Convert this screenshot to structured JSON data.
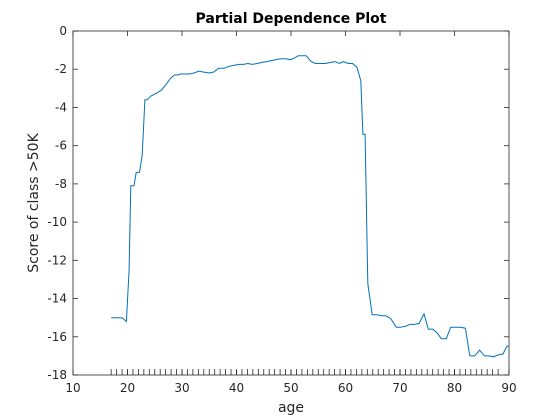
{
  "chart_data": {
    "type": "line",
    "title": "Partial Dependence Plot",
    "xlabel": "age",
    "ylabel": "Score of class >50K",
    "xlim": [
      10,
      90
    ],
    "ylim": [
      -18,
      0
    ],
    "xticks": [
      10,
      20,
      30,
      40,
      50,
      60,
      70,
      80,
      90
    ],
    "yticks": [
      0,
      -2,
      -4,
      -6,
      -8,
      -10,
      -12,
      -14,
      -16,
      -18
    ],
    "xtick_labels": [
      "10",
      "20",
      "30",
      "40",
      "50",
      "60",
      "70",
      "80",
      "90"
    ],
    "ytick_labels": [
      "0",
      "-2",
      "-4",
      "-6",
      "-8",
      "-10",
      "-12",
      "-14",
      "-16",
      "-18"
    ],
    "grid": false,
    "line_color": "#0072BD",
    "rug_x": [
      17,
      18,
      19,
      20,
      21,
      22,
      23,
      24,
      25,
      26,
      27,
      28,
      29,
      30,
      31,
      32,
      33,
      34,
      35,
      36,
      37,
      38,
      39,
      40,
      41,
      42,
      43,
      44,
      45,
      46,
      47,
      48,
      49,
      50,
      51,
      52,
      53,
      54,
      55,
      56,
      57,
      58,
      59,
      60,
      61,
      62,
      63,
      64,
      65,
      66,
      67,
      68,
      69,
      70,
      71,
      72,
      73,
      74,
      75,
      76,
      77,
      78,
      79,
      80,
      81,
      82,
      83,
      84,
      85,
      86,
      87,
      88,
      90
    ],
    "series": [
      {
        "x": [
          17,
          19,
          19.8,
          20.3,
          20.6,
          21.2,
          21.6,
          22.2,
          22.7,
          23.2,
          23.6,
          24.3,
          25,
          25.6,
          26.2,
          27.1,
          27.8,
          28.6,
          29.3,
          29.7,
          30.6,
          31.4,
          32.2,
          33.1,
          34,
          35,
          35.8,
          36.7,
          37.7,
          38.6,
          39.5,
          40.4,
          41.3,
          42.1,
          42.9,
          43.8,
          44.6,
          45.5,
          46.4,
          47.2,
          48.1,
          49,
          49.9,
          50.7,
          51.3,
          52,
          52.8,
          53.7,
          54.5,
          55.4,
          56.3,
          57.2,
          58.1,
          58.9,
          59.6,
          60.5,
          61.3,
          62.1,
          62.8,
          63.2,
          63.6,
          64.1,
          64.9,
          65.7,
          66.6,
          67.4,
          68.3,
          69.3,
          70.1,
          71,
          71.8,
          72.7,
          73.5,
          74.4,
          75.2,
          76,
          76.8,
          77.6,
          78.5,
          79.3,
          80.2,
          81.1,
          82,
          82.8,
          83.7,
          84.6,
          85.5,
          86.3,
          87.2,
          88,
          88.9,
          89.6,
          90
        ],
        "y": [
          -15,
          -15,
          -15.2,
          -12.5,
          -8.1,
          -8.1,
          -7.4,
          -7.4,
          -6.5,
          -3.6,
          -3.6,
          -3.4,
          -3.3,
          -3.2,
          -3.1,
          -2.8,
          -2.5,
          -2.3,
          -2.3,
          -2.25,
          -2.25,
          -2.25,
          -2.2,
          -2.1,
          -2.15,
          -2.2,
          -2.15,
          -1.95,
          -1.95,
          -1.85,
          -1.8,
          -1.75,
          -1.75,
          -1.7,
          -1.75,
          -1.7,
          -1.65,
          -1.6,
          -1.55,
          -1.5,
          -1.45,
          -1.45,
          -1.5,
          -1.4,
          -1.3,
          -1.3,
          -1.3,
          -1.6,
          -1.7,
          -1.7,
          -1.7,
          -1.65,
          -1.6,
          -1.7,
          -1.6,
          -1.7,
          -1.7,
          -1.9,
          -2.6,
          -5.4,
          -5.4,
          -13.2,
          -14.85,
          -14.85,
          -14.9,
          -14.9,
          -15.05,
          -15.5,
          -15.5,
          -15.45,
          -15.35,
          -15.35,
          -15.3,
          -14.8,
          -15.6,
          -15.6,
          -15.8,
          -16.1,
          -16.1,
          -15.5,
          -15.5,
          -15.5,
          -15.55,
          -17,
          -17,
          -16.7,
          -17,
          -17,
          -17.05,
          -16.95,
          -16.9,
          -16.5,
          -16.5
        ]
      }
    ]
  }
}
